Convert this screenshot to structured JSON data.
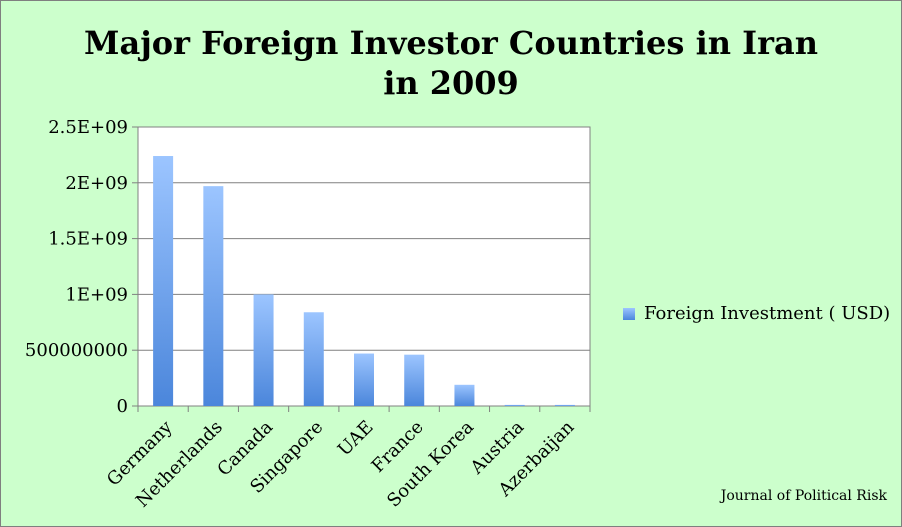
{
  "chart_data": {
    "type": "bar",
    "title": "Major Foreign Investor Countries in Iran in 2009",
    "categories": [
      "Germany",
      "Netherlands",
      "Canada",
      "Singapore",
      "UAE",
      "France",
      "South Korea",
      "Austria",
      "Azerbaijan"
    ],
    "series": [
      {
        "name": "Foreign Investment ( USD)",
        "values": [
          2240000000,
          1970000000,
          1000000000,
          840000000,
          470000000,
          460000000,
          190000000,
          10000000,
          10000000
        ]
      }
    ],
    "yticks": [
      "0",
      "500000000",
      "1E+09",
      "1.5E+09",
      "2E+09",
      "2.5E+09"
    ],
    "ylim": [
      0,
      2500000000
    ],
    "grid": true,
    "legend_position": "right",
    "colors": {
      "bar_top": "#9cc5ff",
      "bar_bottom": "#4b86db",
      "background": "#ccffcc"
    }
  },
  "source": "Journal of Political Risk"
}
